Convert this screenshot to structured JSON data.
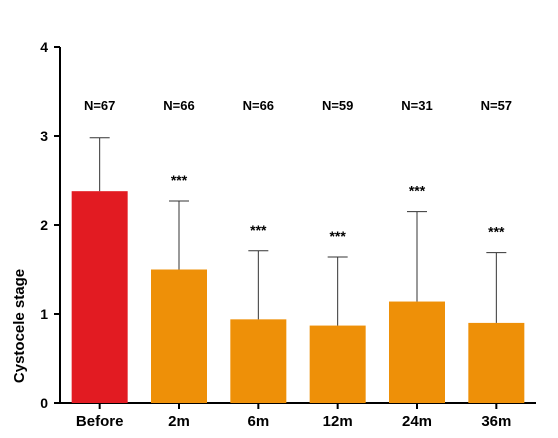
{
  "chart_data": {
    "type": "bar",
    "categories": [
      "Before",
      "2m",
      "6m",
      "12m",
      "24m",
      "36m"
    ],
    "values": [
      2.38,
      1.5,
      0.94,
      0.87,
      1.14,
      0.9
    ],
    "error_upper": [
      2.98,
      2.27,
      1.71,
      1.64,
      2.15,
      1.69
    ],
    "sample_labels": [
      "N=67",
      "N=66",
      "N=66",
      "N=59",
      "N=31",
      "N=57"
    ],
    "significance": [
      "",
      "***",
      "***",
      "***",
      "***",
      "***"
    ],
    "colors": [
      "#e21b22",
      "#ee9008",
      "#ee9008",
      "#ee9008",
      "#ee9008",
      "#ee9008"
    ],
    "ylabel": "Cystocele stage",
    "ylim": [
      0,
      4
    ],
    "yticks": [
      0,
      1,
      2,
      3,
      4
    ],
    "grid": false
  }
}
